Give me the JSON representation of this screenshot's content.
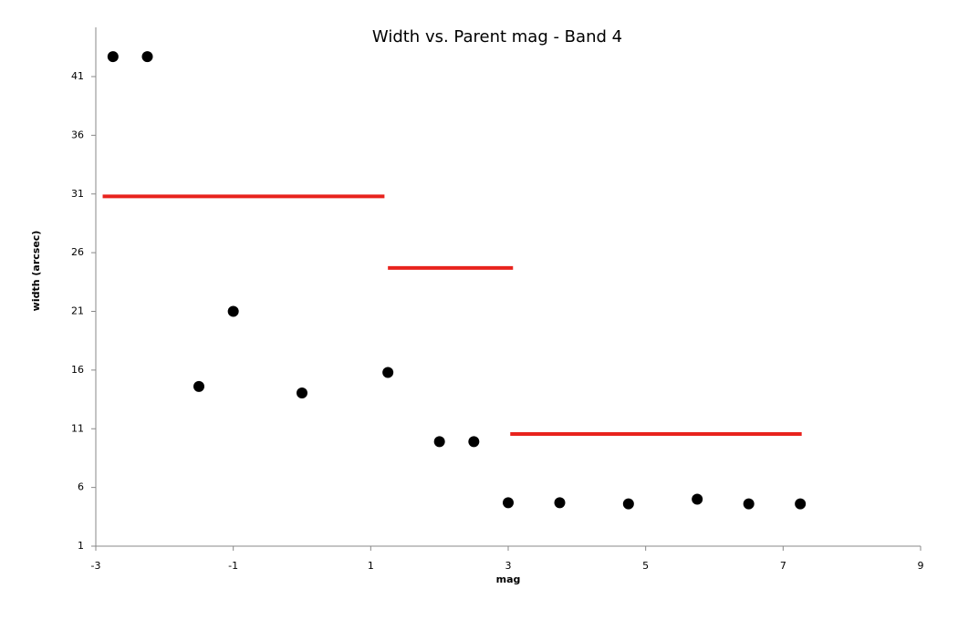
{
  "chart_data": {
    "type": "scatter",
    "title": "Width vs. Parent mag - Band 4",
    "xlabel": "mag",
    "ylabel": "width (arcsec)",
    "xlim": [
      -3,
      9
    ],
    "ylim": [
      1,
      45
    ],
    "xticks": [
      -3,
      -1,
      1,
      3,
      5,
      7,
      9
    ],
    "yticks": [
      1,
      6,
      11,
      16,
      21,
      26,
      31,
      36,
      41
    ],
    "series": [
      {
        "type": "scatter",
        "color": "#000000",
        "x": [
          -2.75,
          -2.25,
          -1.5,
          -1.0,
          0.0,
          1.25,
          2.0,
          2.5,
          3.0,
          3.75,
          4.75,
          5.75,
          6.5,
          7.25
        ],
        "values": [
          42.7,
          42.7,
          14.6,
          21.0,
          14.05,
          15.8,
          9.9,
          9.9,
          4.7,
          4.7,
          4.6,
          5.0,
          4.6,
          4.6
        ]
      },
      {
        "type": "line",
        "color": "#e8231d",
        "x": [
          -2.9,
          1.2
        ],
        "values": [
          30.8,
          30.8
        ]
      },
      {
        "type": "line",
        "color": "#e8231d",
        "x": [
          1.25,
          3.07
        ],
        "values": [
          24.7,
          24.7
        ]
      },
      {
        "type": "line",
        "color": "#e8231d",
        "x": [
          3.03,
          7.27
        ],
        "values": [
          10.55,
          10.55
        ]
      }
    ]
  }
}
